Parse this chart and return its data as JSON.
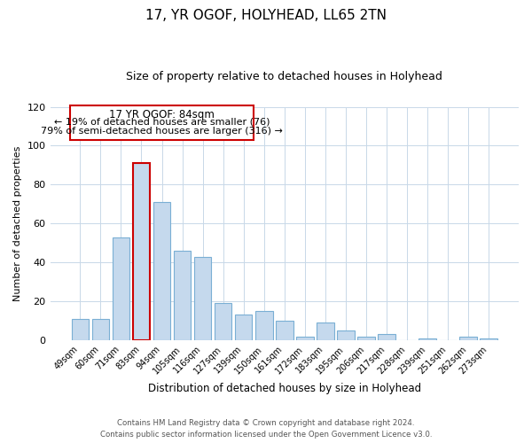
{
  "title": "17, YR OGOF, HOLYHEAD, LL65 2TN",
  "subtitle": "Size of property relative to detached houses in Holyhead",
  "xlabel": "Distribution of detached houses by size in Holyhead",
  "ylabel": "Number of detached properties",
  "categories": [
    "49sqm",
    "60sqm",
    "71sqm",
    "83sqm",
    "94sqm",
    "105sqm",
    "116sqm",
    "127sqm",
    "139sqm",
    "150sqm",
    "161sqm",
    "172sqm",
    "183sqm",
    "195sqm",
    "206sqm",
    "217sqm",
    "228sqm",
    "239sqm",
    "251sqm",
    "262sqm",
    "273sqm"
  ],
  "values": [
    11,
    11,
    53,
    91,
    71,
    46,
    43,
    19,
    13,
    15,
    10,
    2,
    9,
    5,
    2,
    3,
    0,
    1,
    0,
    2,
    1
  ],
  "bar_color": "#c5d9ed",
  "bar_edge_color": "#7aafd4",
  "highlight_bar_index": 3,
  "highlight_bar_edge": "#cc0000",
  "annotation_title": "17 YR OGOF: 84sqm",
  "annotation_line1": "← 19% of detached houses are smaller (76)",
  "annotation_line2": "79% of semi-detached houses are larger (316) →",
  "annotation_box_color": "#ffffff",
  "annotation_box_edge": "#cc0000",
  "ylim": [
    0,
    120
  ],
  "yticks": [
    0,
    20,
    40,
    60,
    80,
    100,
    120
  ],
  "footer_line1": "Contains HM Land Registry data © Crown copyright and database right 2024.",
  "footer_line2": "Contains public sector information licensed under the Open Government Licence v3.0.",
  "background_color": "#ffffff",
  "grid_color": "#c8d8e8"
}
